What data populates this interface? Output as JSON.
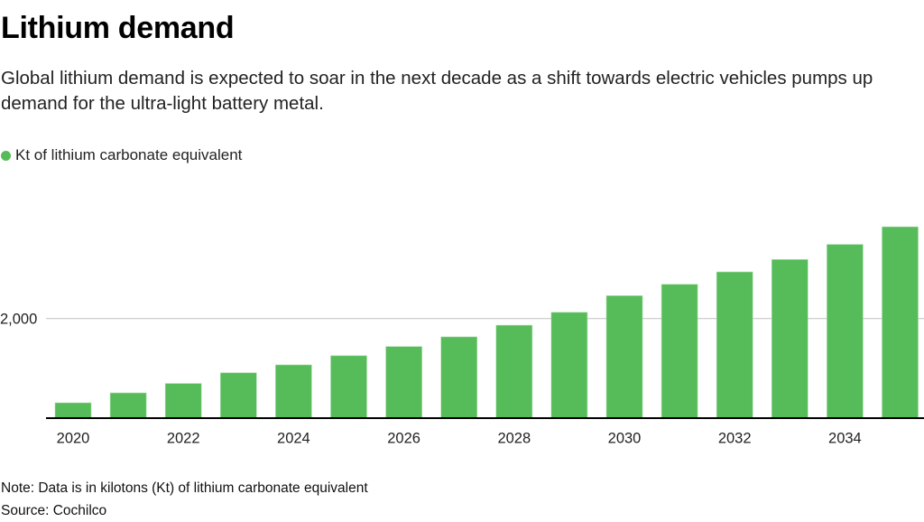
{
  "header": {
    "title": "Lithium demand",
    "subtitle": "Global lithium demand is expected to soar in the next decade as a shift towards electric vehicles pumps up demand for the ultra-light battery metal."
  },
  "legend": {
    "label": "Kt of lithium carbonate equivalent",
    "color": "#56bb59"
  },
  "footer": {
    "note": "Note: Data is in kilotons (Kt) of lithium carbonate equivalent",
    "source": "Source: Cochilco"
  },
  "chart_data": {
    "type": "bar",
    "title": "Lithium demand",
    "xlabel": "",
    "ylabel": "Kt of lithium carbonate equivalent",
    "categories": [
      "2020",
      "2021",
      "2022",
      "2023",
      "2024",
      "2025",
      "2026",
      "2027",
      "2028",
      "2029",
      "2030",
      "2031",
      "2032",
      "2033",
      "2034",
      "2035"
    ],
    "values": [
      300,
      500,
      690,
      905,
      1065,
      1250,
      1435,
      1630,
      1865,
      2125,
      2460,
      2690,
      2940,
      3190,
      3495,
      3850
    ],
    "x_tick_labels": [
      "2020",
      "2022",
      "2024",
      "2026",
      "2028",
      "2030",
      "2032",
      "2034"
    ],
    "y_ticks": [
      2000
    ],
    "y_tick_labels": [
      "2,000"
    ],
    "ylim": [
      0,
      4000
    ],
    "grid": true,
    "legend_position": "top-left",
    "bar_color": "#56bb59"
  }
}
